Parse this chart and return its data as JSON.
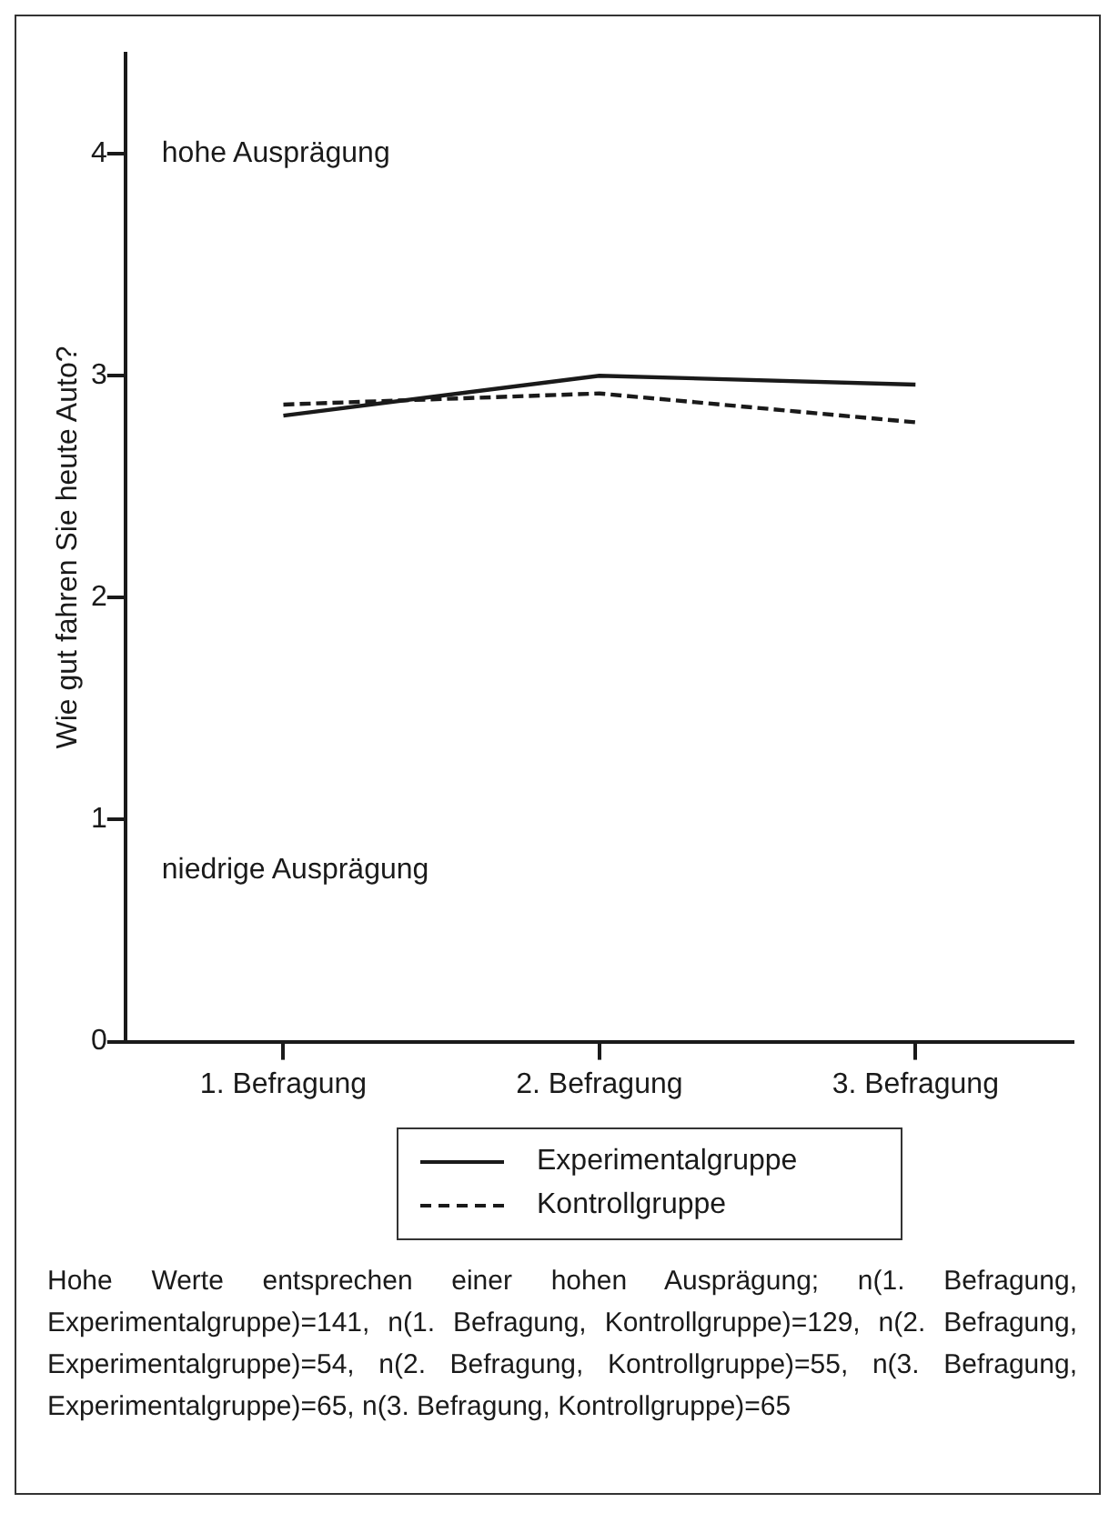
{
  "chart_data": {
    "type": "line",
    "ylabel": "Wie gut fahren Sie heute Auto?",
    "categories": [
      "1. Befragung",
      "2. Befragung",
      "3. Befragung"
    ],
    "series": [
      {
        "name": "Experimentalgruppe",
        "color": "#1a1a1a",
        "values": [
          2.82,
          3.0,
          2.96
        ],
        "line_style": "solid"
      },
      {
        "name": "Kontrollgruppe",
        "color": "#1a1a1a",
        "values": [
          2.87,
          2.92,
          2.79
        ],
        "line_style": "dashed"
      }
    ],
    "ylim": [
      0,
      4.45
    ],
    "yticks": [
      0,
      1,
      2,
      3,
      4
    ],
    "grid": false,
    "legend": "bottom",
    "marker": "none",
    "annotations": [
      "hohe Ausprägung",
      "niedrige Ausprägung",
      "Hohe Werte entsprechen einer hohen Ausprägung; n(1. Befragung, Experimentalgruppe)=141, n(1. Befragung, Kontrollgruppe)=129, n(2. Befragung, Experimentalgruppe)=54, n(2. Befragung, Kontrollgruppe)=55, n(3. Befragung, Experimentalgruppe)=65, n(3. Befragung, Kontrollgruppe)=65"
    ]
  }
}
